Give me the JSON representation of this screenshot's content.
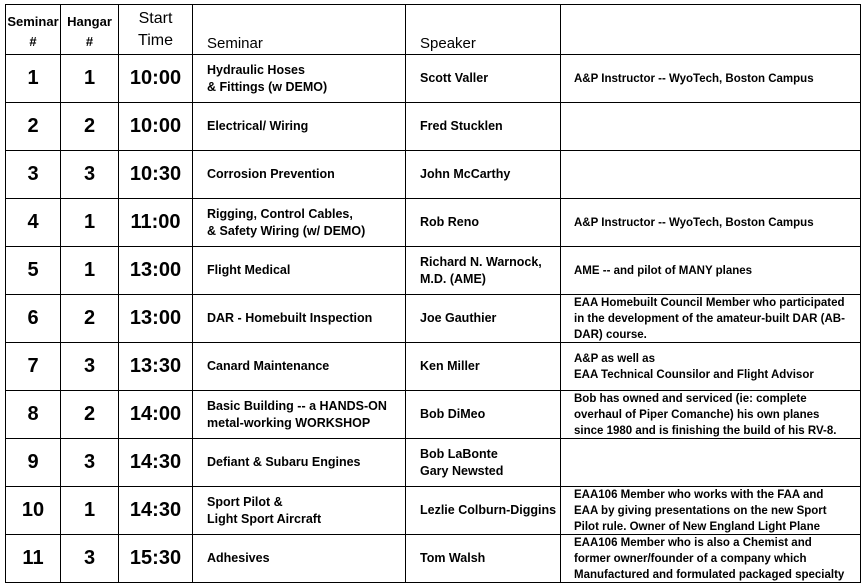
{
  "headers": {
    "seminar_num": [
      "Seminar",
      "#"
    ],
    "hangar_num": [
      "Hangar",
      "#"
    ],
    "start_time": [
      "Start",
      "Time"
    ],
    "seminar": "Seminar",
    "speaker": "Speaker",
    "notes": ""
  },
  "rows": [
    {
      "num": "1",
      "hangar": "1",
      "time": "10:00",
      "seminar": [
        "Hydraulic Hoses",
        "& Fittings  (w DEMO)"
      ],
      "speaker": [
        "Scott Valler"
      ],
      "notes": [
        "A&P Instructor -- WyoTech, Boston Campus"
      ]
    },
    {
      "num": "2",
      "hangar": "2",
      "time": "10:00",
      "seminar": [
        "Electrical/ Wiring"
      ],
      "speaker": [
        "Fred Stucklen"
      ],
      "notes": []
    },
    {
      "num": "3",
      "hangar": "3",
      "time": "10:30",
      "seminar": [
        "Corrosion Prevention"
      ],
      "speaker": [
        "John McCarthy"
      ],
      "notes": []
    },
    {
      "num": "4",
      "hangar": "1",
      "time": "11:00",
      "seminar": [
        "Rigging, Control Cables,",
        "& Safety Wiring (w/ DEMO)"
      ],
      "speaker": [
        "Rob Reno"
      ],
      "notes": [
        "A&P Instructor -- WyoTech, Boston Campus"
      ]
    },
    {
      "num": "5",
      "hangar": "1",
      "time": "13:00",
      "seminar": [
        "Flight Medical"
      ],
      "speaker": [
        "Richard N. Warnock,",
        "M.D.  (AME)"
      ],
      "notes": [
        "AME -- and pilot of MANY planes"
      ]
    },
    {
      "num": "6",
      "hangar": "2",
      "time": "13:00",
      "seminar": [
        "DAR -   Homebuilt Inspection"
      ],
      "speaker": [
        "Joe Gauthier"
      ],
      "notes": [
        "EAA Homebuilt Council Member who participated",
        "in the development of the amateur-built DAR (AB-",
        "DAR) course."
      ]
    },
    {
      "num": "7",
      "hangar": "3",
      "time": "13:30",
      "seminar": [
        "Canard Maintenance"
      ],
      "speaker": [
        "Ken Miller"
      ],
      "notes": [
        "A&P as well as",
        "EAA Technical Counsilor and Flight Advisor"
      ]
    },
    {
      "num": "8",
      "hangar": "2",
      "time": "14:00",
      "seminar": [
        "Basic Building -- a HANDS-ON",
        "metal-working WORKSHOP"
      ],
      "speaker": [
        "Bob DiMeo"
      ],
      "notes": [
        "Bob has owned and serviced (ie: complete",
        "overhaul of Piper Comanche) his own planes",
        "since 1980 and is finishing the build of his RV-8."
      ]
    },
    {
      "num": "9",
      "hangar": "3",
      "time": "14:30",
      "seminar": [
        "Defiant & Subaru Engines"
      ],
      "speaker": [
        "Bob LaBonte",
        "Gary Newsted"
      ],
      "notes": []
    },
    {
      "num": "10",
      "hangar": "1",
      "time": "14:30",
      "seminar": [
        "Sport Pilot &",
        "Light Sport Aircraft"
      ],
      "speaker": [
        "Lezlie Colburn-Diggins"
      ],
      "notes": [
        "EAA106 Member who works with the FAA and",
        "EAA by giving presentations on the new Sport",
        "Pilot rule. Owner of New England Light Plane"
      ]
    },
    {
      "num": "11",
      "hangar": "3",
      "time": "15:30",
      "seminar": [
        "Adhesives"
      ],
      "speaker": [
        "Tom Walsh"
      ],
      "notes": [
        "EAA106 Member who is also a Chemist and",
        "former owner/founder of a company which",
        "Manufactured and formulated packaged specialty"
      ]
    }
  ]
}
